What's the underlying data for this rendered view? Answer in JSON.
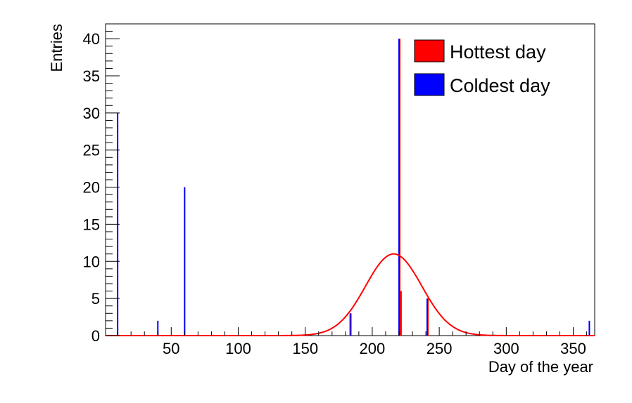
{
  "chart_data": {
    "type": "bar",
    "xlabel": "Day of the year",
    "ylabel": "Entries",
    "xlim": [
      1,
      366
    ],
    "ylim": [
      0,
      42
    ],
    "x_ticks": [
      50,
      100,
      150,
      200,
      250,
      300,
      350
    ],
    "y_ticks": [
      0,
      5,
      10,
      15,
      20,
      25,
      30,
      35,
      40
    ],
    "legend_position": "top-right",
    "series": [
      {
        "name": "Hottest day",
        "color": "#ff0000",
        "bins": [
          {
            "day": 183,
            "value": 3
          },
          {
            "day": 220,
            "value": 40
          },
          {
            "day": 221,
            "value": 6
          },
          {
            "day": 241,
            "value": 5
          }
        ]
      },
      {
        "name": "Coldest day",
        "color": "#0000ff",
        "bins": [
          {
            "day": 10,
            "value": 30
          },
          {
            "day": 40,
            "value": 2
          },
          {
            "day": 60,
            "value": 20
          },
          {
            "day": 184,
            "value": 3
          },
          {
            "day": 220,
            "value": 40
          },
          {
            "day": 241,
            "value": 5
          },
          {
            "day": 362,
            "value": 2
          }
        ]
      }
    ],
    "fit": {
      "type": "gaussian",
      "color": "#ff0000",
      "constant": 11,
      "mean": 216,
      "sigma": 21
    }
  }
}
